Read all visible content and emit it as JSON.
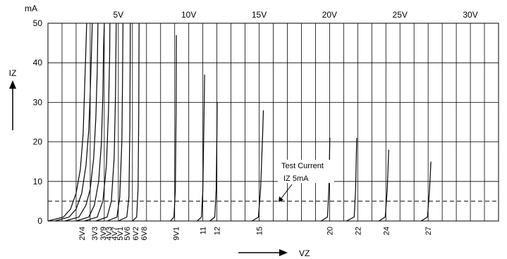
{
  "chart_data": {
    "type": "line",
    "title": "",
    "y_unit_label": "mA",
    "ylabel": "IZ",
    "xlabel": "VZ",
    "ylim": [
      0,
      50
    ],
    "xlim": [
      0,
      32
    ],
    "grid": true,
    "y_ticks": [
      "0",
      "10",
      "20",
      "30",
      "40",
      "50"
    ],
    "y_tick_values": [
      0,
      10,
      20,
      30,
      40,
      50
    ],
    "x_top_ticks": [
      {
        "label": "5V",
        "value": 5
      },
      {
        "label": "10V",
        "value": 10
      },
      {
        "label": "15V",
        "value": 15
      },
      {
        "label": "20V",
        "value": 20
      },
      {
        "label": "25V",
        "value": 25
      },
      {
        "label": "30V",
        "value": 30
      }
    ],
    "test_current": {
      "value": 5,
      "label_line1": "Test Current",
      "label_line2": "IZ 5mA"
    },
    "series": [
      {
        "name": "2V4",
        "points": [
          [
            0.0,
            0
          ],
          [
            1.1,
            1
          ],
          [
            1.6,
            3
          ],
          [
            2.0,
            7
          ],
          [
            2.3,
            13
          ],
          [
            2.5,
            22
          ],
          [
            2.6,
            33
          ],
          [
            2.7,
            44
          ],
          [
            2.75,
            50
          ]
        ]
      },
      {
        "name": "3V3",
        "points": [
          [
            0.5,
            0
          ],
          [
            1.5,
            1
          ],
          [
            2.0,
            3
          ],
          [
            2.4,
            7
          ],
          [
            2.7,
            14
          ],
          [
            2.9,
            23
          ],
          [
            3.0,
            32
          ],
          [
            3.1,
            44
          ],
          [
            3.15,
            50
          ]
        ]
      },
      {
        "name": "3V9",
        "points": [
          [
            1.2,
            0
          ],
          [
            2.2,
            1
          ],
          [
            2.7,
            4
          ],
          [
            3.0,
            8
          ],
          [
            3.25,
            16
          ],
          [
            3.4,
            26
          ],
          [
            3.5,
            38
          ],
          [
            3.55,
            50
          ]
        ]
      },
      {
        "name": "4V3",
        "points": [
          [
            2.0,
            0
          ],
          [
            2.9,
            1
          ],
          [
            3.3,
            4
          ],
          [
            3.6,
            10
          ],
          [
            3.8,
            20
          ],
          [
            3.9,
            32
          ],
          [
            3.95,
            44
          ],
          [
            4.0,
            50
          ]
        ]
      },
      {
        "name": "4V7",
        "points": [
          [
            2.6,
            0
          ],
          [
            3.5,
            1
          ],
          [
            3.9,
            5
          ],
          [
            4.15,
            14
          ],
          [
            4.3,
            28
          ],
          [
            4.38,
            42
          ],
          [
            4.4,
            50
          ]
        ]
      },
      {
        "name": "5V1",
        "points": [
          [
            3.4,
            0
          ],
          [
            4.2,
            1
          ],
          [
            4.5,
            5
          ],
          [
            4.7,
            16
          ],
          [
            4.8,
            32
          ],
          [
            4.85,
            50
          ]
        ]
      },
      {
        "name": "5V6",
        "points": [
          [
            4.2,
            0
          ],
          [
            4.9,
            1
          ],
          [
            5.1,
            6
          ],
          [
            5.25,
            20
          ],
          [
            5.3,
            36
          ],
          [
            5.33,
            50
          ]
        ]
      },
      {
        "name": "6V2",
        "points": [
          [
            5.0,
            0
          ],
          [
            5.6,
            1
          ],
          [
            5.75,
            6
          ],
          [
            5.82,
            24
          ],
          [
            5.85,
            50
          ]
        ]
      },
      {
        "name": "6V8",
        "points": [
          [
            6.0,
            0
          ],
          [
            6.3,
            1
          ],
          [
            6.4,
            8
          ],
          [
            6.45,
            28
          ],
          [
            6.47,
            50
          ]
        ]
      },
      {
        "name": "9V1",
        "points": [
          [
            8.7,
            0
          ],
          [
            8.95,
            1
          ],
          [
            9.05,
            8
          ],
          [
            9.1,
            28
          ],
          [
            9.12,
            47
          ]
        ]
      },
      {
        "name": "11",
        "points": [
          [
            10.6,
            0
          ],
          [
            10.9,
            1
          ],
          [
            11.0,
            8
          ],
          [
            11.08,
            26
          ],
          [
            11.12,
            37
          ]
        ]
      },
      {
        "name": "12",
        "points": [
          [
            11.5,
            0
          ],
          [
            11.85,
            1
          ],
          [
            11.95,
            8
          ],
          [
            12.0,
            22
          ],
          [
            12.02,
            30
          ]
        ]
      },
      {
        "name": "15",
        "points": [
          [
            14.5,
            0
          ],
          [
            14.95,
            1
          ],
          [
            15.1,
            8
          ],
          [
            15.25,
            22
          ],
          [
            15.3,
            28
          ]
        ]
      },
      {
        "name": "20",
        "points": [
          [
            19.4,
            0
          ],
          [
            19.85,
            1
          ],
          [
            19.95,
            8
          ],
          [
            20.02,
            21
          ]
        ]
      },
      {
        "name": "22",
        "points": [
          [
            21.2,
            0
          ],
          [
            21.75,
            1
          ],
          [
            21.85,
            8
          ],
          [
            21.93,
            21
          ]
        ]
      },
      {
        "name": "24",
        "points": [
          [
            23.5,
            0
          ],
          [
            23.95,
            1
          ],
          [
            24.1,
            8
          ],
          [
            24.2,
            18
          ]
        ]
      },
      {
        "name": "27",
        "points": [
          [
            26.5,
            0
          ],
          [
            26.95,
            1
          ],
          [
            27.1,
            8
          ],
          [
            27.2,
            15
          ]
        ]
      }
    ],
    "x_bottom_labels": [
      {
        "label": "2V4",
        "value": 2.4
      },
      {
        "label": "3V3",
        "value": 3.3
      },
      {
        "label": "3V9",
        "value": 3.9
      },
      {
        "label": "4V3",
        "value": 4.3
      },
      {
        "label": "4V7",
        "value": 4.7
      },
      {
        "label": "5V1",
        "value": 5.1
      },
      {
        "label": "5V6",
        "value": 5.6
      },
      {
        "label": "6V2",
        "value": 6.2
      },
      {
        "label": "6V8",
        "value": 6.8
      },
      {
        "label": "9V1",
        "value": 9.1
      },
      {
        "label": "11",
        "value": 11
      },
      {
        "label": "12",
        "value": 12
      },
      {
        "label": "15",
        "value": 15
      },
      {
        "label": "20",
        "value": 20
      },
      {
        "label": "22",
        "value": 22
      },
      {
        "label": "24",
        "value": 24
      },
      {
        "label": "27",
        "value": 27
      }
    ]
  }
}
